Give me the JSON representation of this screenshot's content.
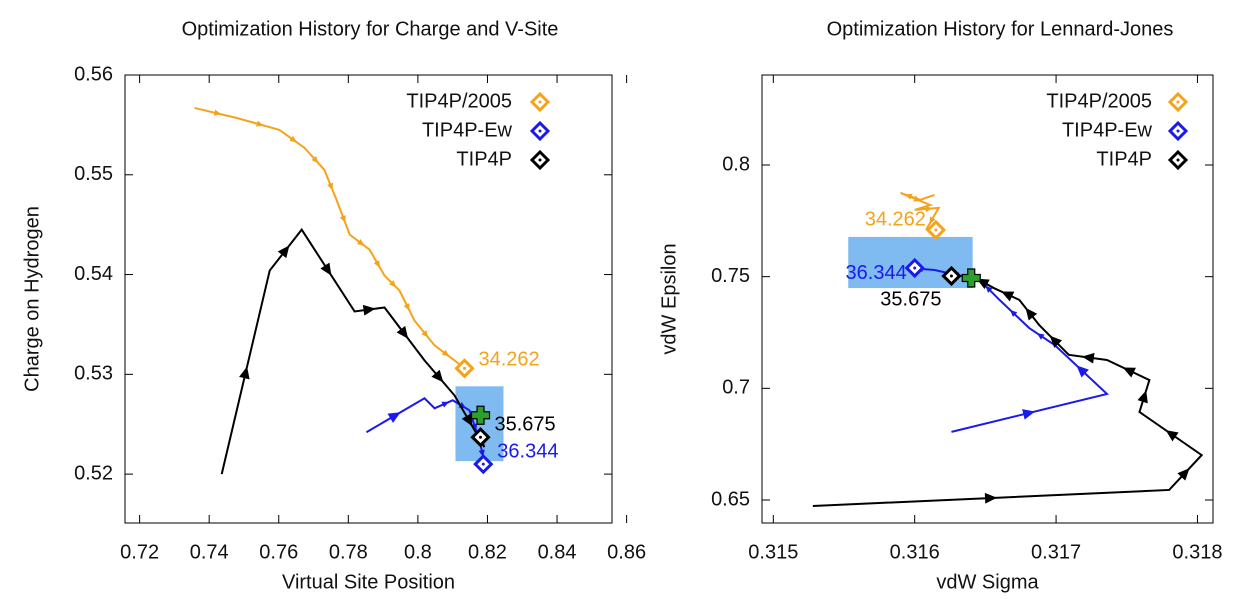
{
  "chart_data": [
    {
      "type": "path",
      "title": "Optimization History for Charge and V-Site",
      "xlabel": "Virtual Site Position",
      "ylabel": "Charge on Hydrogen",
      "xlim": [
        0.7158,
        0.8558
      ],
      "ylim": [
        0.5151,
        0.56
      ],
      "xticks": [
        0.72,
        0.74,
        0.76,
        0.78,
        0.8,
        0.82,
        0.84,
        0.86
      ],
      "yticks": [
        0.52,
        0.53,
        0.54,
        0.55,
        0.56
      ],
      "legend": "upper right",
      "box": {
        "x": [
          0.8108,
          0.8246
        ],
        "y": [
          0.5213,
          0.5288
        ],
        "color": "#7fbaf0"
      },
      "target": {
        "x": 0.818,
        "y": 0.5259,
        "color": "#2ca02c"
      },
      "series": [
        {
          "name": "TIP4P/2005",
          "color": "#f5a31a",
          "x": [
            0.7358,
            0.7478,
            0.7602,
            0.7674,
            0.7731,
            0.7766,
            0.7804,
            0.7861,
            0.7904,
            0.7947,
            0.799,
            0.8048,
            0.8105,
            0.8134
          ],
          "y": [
            0.5567,
            0.5557,
            0.5545,
            0.5527,
            0.5505,
            0.5475,
            0.544,
            0.5425,
            0.5399,
            0.5384,
            0.5354,
            0.5329,
            0.5314,
            0.5306
          ],
          "end": {
            "x": 0.8134,
            "y": 0.5306,
            "score": 34.262
          }
        },
        {
          "name": "TIP4P-Ew",
          "color": "#1a1aeb",
          "x": [
            0.7852,
            0.8019,
            0.8048,
            0.81,
            0.8148,
            0.8177,
            0.8191
          ],
          "y": [
            0.5242,
            0.5276,
            0.5266,
            0.5274,
            0.5264,
            0.5234,
            0.5212
          ],
          "end": {
            "x": 0.8188,
            "y": 0.521,
            "score": 36.344
          }
        },
        {
          "name": "TIP4P",
          "color": "#000000",
          "x": [
            0.7436,
            0.7574,
            0.7666,
            0.7818,
            0.7904,
            0.8019,
            0.8105,
            0.8191,
            0.818
          ],
          "y": [
            0.52,
            0.5404,
            0.5445,
            0.5363,
            0.5367,
            0.5314,
            0.5279,
            0.5227,
            0.5237
          ],
          "end": {
            "x": 0.818,
            "y": 0.5237,
            "score": 35.675
          }
        }
      ]
    },
    {
      "type": "path",
      "title": "Optimization History for Lennard-Jones",
      "xlabel": "vdW Sigma",
      "ylabel": "vdW Epsilon",
      "xlim": [
        0.31492,
        0.31811
      ],
      "ylim": [
        0.6397,
        0.8403
      ],
      "xticks": [
        0.315,
        0.316,
        0.317,
        0.318
      ],
      "yticks": [
        0.65,
        0.7,
        0.75,
        0.8
      ],
      "legend": "upper right",
      "box": {
        "x": [
          0.31553,
          0.31641
        ],
        "y": [
          0.7449,
          0.7678
        ],
        "color": "#7fbaf0"
      },
      "target": {
        "x": 0.3164,
        "y": 0.7494,
        "color": "#2ca02c"
      },
      "series": [
        {
          "name": "TIP4P/2005",
          "color": "#f5a31a",
          "x": [
            0.31614,
            0.31604,
            0.3159,
            0.31611,
            0.316,
            0.31617,
            0.31608
          ],
          "y": [
            0.7866,
            0.7844,
            0.7875,
            0.7821,
            0.7799,
            0.7808,
            0.7709
          ],
          "end": {
            "x": 0.31615,
            "y": 0.7709,
            "score": 34.262
          }
        },
        {
          "name": "TIP4P-Ew",
          "color": "#1a1aeb",
          "x": [
            0.31626,
            0.31736,
            0.31699,
            0.31681,
            0.3166,
            0.31646,
            0.31614,
            0.31596
          ],
          "y": [
            0.6805,
            0.6975,
            0.7194,
            0.727,
            0.7396,
            0.7485,
            0.753,
            0.7539
          ],
          "end": {
            "x": 0.316,
            "y": 0.7539,
            "score": 36.344
          }
        },
        {
          "name": "TIP4P",
          "color": "#000000",
          "x": [
            0.31528,
            0.3178,
            0.31803,
            0.31759,
            0.31766,
            0.31736,
            0.31709,
            0.31688,
            0.31674,
            0.31656,
            0.31639
          ],
          "y": [
            0.6473,
            0.6545,
            0.6701,
            0.6894,
            0.7037,
            0.7127,
            0.715,
            0.7284,
            0.7396,
            0.7449,
            0.7508
          ],
          "end": {
            "x": 0.31626,
            "y": 0.7503,
            "score": 35.675
          }
        }
      ]
    }
  ]
}
